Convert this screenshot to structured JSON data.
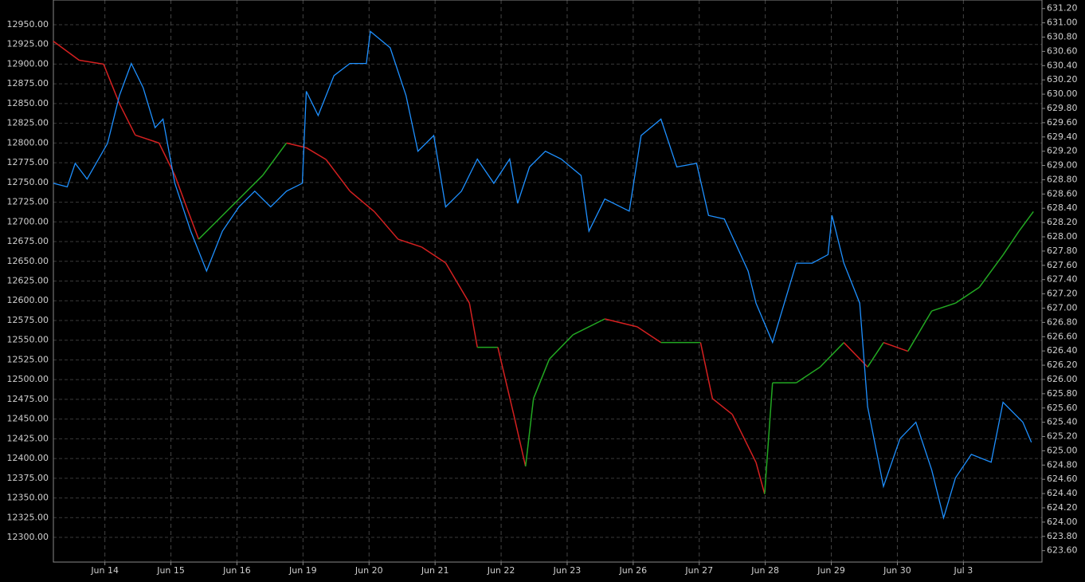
{
  "chart_data": {
    "type": "line",
    "xlim": [
      -0.78,
      14.19
    ],
    "xticks": [
      {
        "value": 0,
        "label": "Jun 14"
      },
      {
        "value": 1,
        "label": "Jun 15"
      },
      {
        "value": 2,
        "label": "Jun 16"
      },
      {
        "value": 3,
        "label": "Jun 19"
      },
      {
        "value": 4,
        "label": "Jun 20"
      },
      {
        "value": 5,
        "label": "Jun 21"
      },
      {
        "value": 6,
        "label": "Jun 22"
      },
      {
        "value": 7,
        "label": "Jun 23"
      },
      {
        "value": 8,
        "label": "Jun 26"
      },
      {
        "value": 9,
        "label": "Jun 27"
      },
      {
        "value": 10,
        "label": "Jun 28"
      },
      {
        "value": 11,
        "label": "Jun 29"
      },
      {
        "value": 12,
        "label": "Jun 30"
      },
      {
        "value": 13,
        "label": "Jul 3"
      }
    ],
    "ylim": [
      12268.7,
      12981.3
    ],
    "yticks": [
      {
        "value": 12300,
        "label": "12300.00"
      },
      {
        "value": 12325,
        "label": "12325.00"
      },
      {
        "value": 12350,
        "label": "12350.00"
      },
      {
        "value": 12375,
        "label": "12375.00"
      },
      {
        "value": 12400,
        "label": "12400.00"
      },
      {
        "value": 12425,
        "label": "12425.00"
      },
      {
        "value": 12450,
        "label": "12450.00"
      },
      {
        "value": 12475,
        "label": "12475.00"
      },
      {
        "value": 12500,
        "label": "12500.00"
      },
      {
        "value": 12525,
        "label": "12525.00"
      },
      {
        "value": 12550,
        "label": "12550.00"
      },
      {
        "value": 12575,
        "label": "12575.00"
      },
      {
        "value": 12600,
        "label": "12600.00"
      },
      {
        "value": 12625,
        "label": "12625.00"
      },
      {
        "value": 12650,
        "label": "12650.00"
      },
      {
        "value": 12675,
        "label": "12675.00"
      },
      {
        "value": 12700,
        "label": "12700.00"
      },
      {
        "value": 12725,
        "label": "12725.00"
      },
      {
        "value": 12750,
        "label": "12750.00"
      },
      {
        "value": 12775,
        "label": "12775.00"
      },
      {
        "value": 12800,
        "label": "12800.00"
      },
      {
        "value": 12825,
        "label": "12825.00"
      },
      {
        "value": 12850,
        "label": "12850.00"
      },
      {
        "value": 12875,
        "label": "12875.00"
      },
      {
        "value": 12900,
        "label": "12900.00"
      },
      {
        "value": 12925,
        "label": "12925.00"
      },
      {
        "value": 12950,
        "label": "12950.00"
      }
    ],
    "y2lim": [
      623.44,
      631.32
    ],
    "y2ticks": [
      {
        "value": 623.6,
        "label": "623.60"
      },
      {
        "value": 623.8,
        "label": "623.80"
      },
      {
        "value": 624,
        "label": "624.00"
      },
      {
        "value": 624.2,
        "label": "624.20"
      },
      {
        "value": 624.4,
        "label": "624.40"
      },
      {
        "value": 624.6,
        "label": "624.60"
      },
      {
        "value": 624.8,
        "label": "624.80"
      },
      {
        "value": 625,
        "label": "625.00"
      },
      {
        "value": 625.2,
        "label": "625.20"
      },
      {
        "value": 625.4,
        "label": "625.40"
      },
      {
        "value": 625.6,
        "label": "625.60"
      },
      {
        "value": 625.8,
        "label": "625.80"
      },
      {
        "value": 626,
        "label": "626.00"
      },
      {
        "value": 626.2,
        "label": "626.20"
      },
      {
        "value": 626.4,
        "label": "626.40"
      },
      {
        "value": 626.6,
        "label": "626.60"
      },
      {
        "value": 626.8,
        "label": "626.80"
      },
      {
        "value": 627,
        "label": "627.00"
      },
      {
        "value": 627.2,
        "label": "627.20"
      },
      {
        "value": 627.4,
        "label": "627.40"
      },
      {
        "value": 627.6,
        "label": "627.60"
      },
      {
        "value": 627.8,
        "label": "627.80"
      },
      {
        "value": 628,
        "label": "628.00"
      },
      {
        "value": 628.2,
        "label": "628.20"
      },
      {
        "value": 628.4,
        "label": "628.40"
      },
      {
        "value": 628.6,
        "label": "628.60"
      },
      {
        "value": 628.8,
        "label": "628.80"
      },
      {
        "value": 629,
        "label": "629.00"
      },
      {
        "value": 629.2,
        "label": "629.20"
      },
      {
        "value": 629.4,
        "label": "629.40"
      },
      {
        "value": 629.6,
        "label": "629.60"
      },
      {
        "value": 629.8,
        "label": "629.80"
      },
      {
        "value": 630,
        "label": "630.00"
      },
      {
        "value": 630.2,
        "label": "630.20"
      },
      {
        "value": 630.4,
        "label": "630.40"
      },
      {
        "value": 630.6,
        "label": "630.60"
      },
      {
        "value": 630.8,
        "label": "630.80"
      },
      {
        "value": 631,
        "label": "631.00"
      },
      {
        "value": 631.2,
        "label": "631.20"
      }
    ],
    "grid": true,
    "series": [
      {
        "color": "#22a822",
        "down_color": "#d42020",
        "x": [
          -0.78,
          -0.39,
          -0.02,
          0.22,
          0.46,
          0.82,
          1.06,
          1.24,
          1.42,
          1.66,
          2.03,
          2.39,
          2.75,
          3.05,
          3.35,
          3.71,
          4.08,
          4.44,
          4.8,
          5.16,
          5.52,
          5.64,
          5.95,
          6.19,
          6.37,
          6.49,
          6.73,
          7.09,
          7.57,
          8.06,
          8.42,
          8.78,
          9.02,
          9.2,
          9.5,
          9.86,
          9.99,
          10.11,
          10.47,
          10.83,
          11.19,
          11.55,
          11.79,
          12.16,
          12.52,
          12.88,
          13.24,
          13.6,
          13.84,
          14.06
        ],
        "values": [
          12929,
          12905,
          12900,
          12850,
          12810,
          12800,
          12759,
          12718,
          12678,
          12698,
          12729,
          12759,
          12800,
          12794,
          12779,
          12739,
          12713,
          12678,
          12668,
          12648,
          12597,
          12541,
          12541,
          12456,
          12390,
          12476,
          12526,
          12557,
          12577,
          12567,
          12547,
          12547,
          12547,
          12476,
          12456,
          12395,
          12355,
          12496,
          12496,
          12516,
          12547,
          12516,
          12547,
          12536,
          12587,
          12597,
          12617,
          12658,
          12688,
          12713
        ]
      },
      {
        "color": "#1e90ff",
        "axis": "y2",
        "x": [
          -0.78,
          -0.57,
          -0.45,
          -0.27,
          0.04,
          0.22,
          0.4,
          0.58,
          0.76,
          0.88,
          1.06,
          1.3,
          1.54,
          1.78,
          2.03,
          2.27,
          2.51,
          2.75,
          2.99,
          3.05,
          3.23,
          3.47,
          3.71,
          3.96,
          4.02,
          4.32,
          4.56,
          4.74,
          4.98,
          5.16,
          5.4,
          5.64,
          5.89,
          6.13,
          6.25,
          6.43,
          6.67,
          6.91,
          7.21,
          7.33,
          7.57,
          7.94,
          8.12,
          8.42,
          8.66,
          8.96,
          9.14,
          9.38,
          9.74,
          9.86,
          10.11,
          10.47,
          10.71,
          10.95,
          11.01,
          11.19,
          11.43,
          11.55,
          11.79,
          12.04,
          12.28,
          12.52,
          12.7,
          12.88,
          13.12,
          13.42,
          13.6,
          13.9,
          14.03
        ],
        "values": [
          628.75,
          628.7,
          629.03,
          628.81,
          629.31,
          629.98,
          630.43,
          630.09,
          629.53,
          629.65,
          628.75,
          628.08,
          627.52,
          628.08,
          628.42,
          628.64,
          628.42,
          628.64,
          628.75,
          630.04,
          629.7,
          630.26,
          630.43,
          630.43,
          630.88,
          630.65,
          629.98,
          629.2,
          629.42,
          628.42,
          628.64,
          629.09,
          628.75,
          629.09,
          628.47,
          628.98,
          629.2,
          629.09,
          628.86,
          628.08,
          628.53,
          628.36,
          629.42,
          629.65,
          628.98,
          629.03,
          628.3,
          628.25,
          627.52,
          627.07,
          626.52,
          627.63,
          627.63,
          627.75,
          628.3,
          627.63,
          627.07,
          625.62,
          624.5,
          625.17,
          625.4,
          624.73,
          624.06,
          624.62,
          624.95,
          624.84,
          625.68,
          625.4,
          625.12
        ]
      }
    ]
  }
}
